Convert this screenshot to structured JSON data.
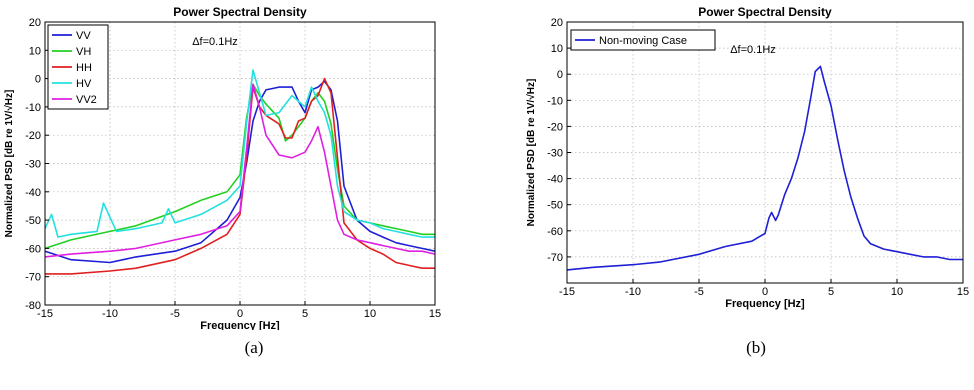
{
  "chart_data": [
    {
      "type": "line",
      "title": "Power Spectral Density",
      "xlabel": "Frequency [Hz]",
      "ylabel": "Normalized PSD [dB re 1V/√Hz]",
      "annotation": "Δf=0.1Hz",
      "xlim": [
        -15,
        15
      ],
      "ylim": [
        -80,
        20
      ],
      "xticks": [
        -15,
        -10,
        -5,
        0,
        5,
        10,
        15
      ],
      "yticks": [
        20,
        10,
        0,
        -10,
        -20,
        -30,
        -40,
        -50,
        -60,
        -70,
        -80
      ],
      "grid": true,
      "legend_position": "top-left",
      "series": [
        {
          "name": "VV",
          "color": "#1f1fd6",
          "x": [
            -15,
            -13,
            -10,
            -8,
            -5,
            -3,
            -1,
            0,
            0.5,
            1,
            1.5,
            2,
            3,
            4,
            4.5,
            5,
            5.5,
            6,
            6.5,
            7,
            7.5,
            8,
            9,
            10,
            11,
            12,
            13,
            14,
            15
          ],
          "y": [
            -61,
            -64,
            -65,
            -63,
            -61,
            -58,
            -50,
            -42,
            -30,
            -15,
            -8,
            -4,
            -3,
            -3,
            -8,
            -12,
            -4,
            -3,
            -1,
            -4,
            -15,
            -38,
            -50,
            -54,
            -56,
            -58,
            -59,
            -60,
            -61
          ]
        },
        {
          "name": "VH",
          "color": "#22d022",
          "x": [
            -15,
            -13,
            -10,
            -8,
            -5,
            -3,
            -1,
            0,
            0.5,
            1,
            1.5,
            2,
            3,
            3.5,
            4,
            5,
            5.5,
            6,
            6.5,
            7,
            7.5,
            8,
            9,
            10,
            11,
            12,
            13,
            14,
            15
          ],
          "y": [
            -60,
            -57,
            -54,
            -52,
            -47,
            -43,
            -40,
            -34,
            -14,
            -2,
            -6,
            -9,
            -14,
            -22,
            -20,
            -14,
            -8,
            -5,
            -8,
            -16,
            -32,
            -45,
            -50,
            -51,
            -52,
            -53,
            -54,
            -55,
            -55
          ]
        },
        {
          "name": "HH",
          "color": "#e02020",
          "x": [
            -15,
            -13,
            -10,
            -8,
            -5,
            -3,
            -1,
            0,
            0.5,
            1,
            1.5,
            2,
            3,
            3.5,
            4,
            4.5,
            5,
            5.5,
            6,
            6.5,
            7,
            7.5,
            8,
            9,
            10,
            11,
            12,
            13,
            14,
            15
          ],
          "y": [
            -69,
            -69,
            -68,
            -67,
            -64,
            -60,
            -55,
            -48,
            -28,
            -3,
            -10,
            -13,
            -16,
            -21,
            -21,
            -15,
            -14,
            -8,
            -6,
            0,
            -5,
            -28,
            -51,
            -57,
            -60,
            -62,
            -65,
            -66,
            -67,
            -67
          ]
        },
        {
          "name": "HV",
          "color": "#22e0e0",
          "x": [
            -15,
            -14.5,
            -14,
            -13,
            -11,
            -10.5,
            -10,
            -9.5,
            -8,
            -6,
            -5.5,
            -5,
            -3,
            -1,
            0,
            0.5,
            1,
            1.5,
            2,
            3,
            4,
            5,
            5.5,
            6,
            6.5,
            7,
            7.5,
            8,
            9,
            10,
            11,
            12,
            13,
            14,
            15
          ],
          "y": [
            -53,
            -48,
            -56,
            -55,
            -54,
            -44,
            -49,
            -54,
            -53,
            -51,
            -46,
            -51,
            -48,
            -43,
            -38,
            -16,
            3,
            -5,
            -13,
            -12,
            -6,
            -10,
            -3,
            -8,
            -12,
            -20,
            -38,
            -47,
            -50,
            -51,
            -53,
            -54,
            -55,
            -56,
            -56
          ]
        },
        {
          "name": "VV2",
          "color": "#e020e0",
          "x": [
            -15,
            -13,
            -10,
            -8,
            -5,
            -3,
            -1,
            0,
            0.5,
            1,
            1.5,
            2,
            3,
            4,
            5,
            5.5,
            6,
            6.5,
            7,
            7.5,
            8,
            9,
            10,
            11,
            12,
            13,
            14,
            15
          ],
          "y": [
            -63,
            -62,
            -61,
            -60,
            -57,
            -55,
            -52,
            -47,
            -25,
            -2,
            -10,
            -20,
            -27,
            -28,
            -26,
            -22,
            -17,
            -26,
            -38,
            -50,
            -55,
            -57,
            -58,
            -59,
            -60,
            -61,
            -61,
            -62
          ]
        }
      ]
    },
    {
      "type": "line",
      "title": "Power Spectral Density",
      "xlabel": "Frequency [Hz]",
      "ylabel": "Normalized PSD [dB re 1V/√Hz]",
      "annotation": "Δf=0.1Hz",
      "xlim": [
        -15,
        15
      ],
      "ylim": [
        -80,
        20
      ],
      "xticks": [
        -15,
        -10,
        -5,
        0,
        5,
        10,
        15
      ],
      "yticks": [
        20,
        10,
        0,
        -10,
        -20,
        -30,
        -40,
        -50,
        -60,
        -70
      ],
      "grid": true,
      "legend_position": "top-left",
      "series": [
        {
          "name": "Non-moving Case",
          "color": "#1f1fd6",
          "x": [
            -15,
            -13,
            -10,
            -8,
            -5,
            -3,
            -1,
            0,
            0.3,
            0.5,
            0.8,
            1,
            1.5,
            2,
            2.5,
            3,
            3.5,
            3.8,
            4,
            4.2,
            4.5,
            5,
            5.5,
            6,
            6.5,
            7,
            7.5,
            8,
            9,
            10,
            11,
            12,
            13,
            14,
            15
          ],
          "y": [
            -75,
            -74,
            -73,
            -72,
            -69,
            -66,
            -64,
            -61,
            -55,
            -53,
            -56,
            -54,
            -46,
            -40,
            -32,
            -22,
            -8,
            1,
            2,
            3,
            -3,
            -12,
            -25,
            -37,
            -47,
            -55,
            -62,
            -65,
            -67,
            -68,
            -69,
            -70,
            -70,
            -71,
            -71
          ]
        }
      ]
    }
  ],
  "captions": [
    "(a)",
    "(b)"
  ]
}
